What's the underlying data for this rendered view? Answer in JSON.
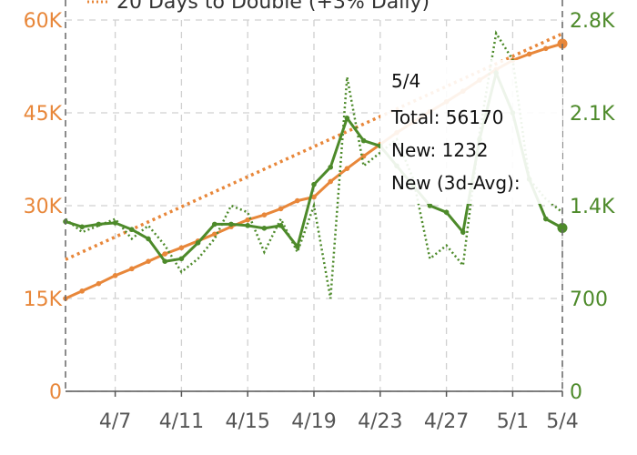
{
  "chart_data": {
    "type": "line",
    "legend": {
      "label": "20 Days to Double (+3% Daily)",
      "placement": "top"
    },
    "x_tick_labels": [
      "4/7",
      "4/11",
      "4/15",
      "4/19",
      "4/23",
      "4/27",
      "5/1",
      "5/4"
    ],
    "left_axis": {
      "range": [
        0,
        60000
      ],
      "ticks": [
        0,
        15000,
        30000,
        45000,
        60000
      ],
      "tick_labels": [
        "0",
        "15K",
        "30K",
        "45K",
        "60K"
      ],
      "color": "#e8873a"
    },
    "right_axis": {
      "range": [
        0,
        2800
      ],
      "ticks": [
        0,
        700,
        1400,
        2100,
        2800
      ],
      "tick_labels": [
        "0",
        "700",
        "1.4K",
        "2.1K",
        "2.8K"
      ],
      "color": "#4d8a2a"
    },
    "grid": true,
    "series": [
      {
        "axis": "left",
        "style": "solid-dots",
        "color": "#e8873a",
        "x": [
          "4/4",
          "4/5",
          "4/6",
          "4/7",
          "4/8",
          "4/9",
          "4/10",
          "4/11",
          "4/12",
          "4/13",
          "4/14",
          "4/15",
          "4/16",
          "4/17",
          "4/18",
          "4/19",
          "4/20",
          "4/21",
          "4/22",
          "4/23",
          "4/24",
          "4/25",
          "4/26",
          "4/27",
          "4/28",
          "4/29",
          "4/30",
          "5/1",
          "5/2",
          "5/3",
          "5/4"
        ],
        "values": [
          15000,
          16200,
          17400,
          18700,
          19800,
          21000,
          22200,
          23200,
          24300,
          25400,
          26600,
          27700,
          28500,
          29500,
          30800,
          31400,
          33900,
          36000,
          38000,
          39900,
          41800,
          43500,
          45200,
          46800,
          48500,
          50300,
          52000,
          53500,
          54500,
          55400,
          56170
        ]
      },
      {
        "axis": "left",
        "style": "dotted",
        "color": "#e8873a",
        "x": [
          "4/4",
          "5/4"
        ],
        "values": [
          21300,
          57800
        ]
      },
      {
        "axis": "right",
        "style": "dotted",
        "color": "#4d8a2a",
        "x": [
          "4/4",
          "4/5",
          "4/6",
          "4/7",
          "4/8",
          "4/9",
          "4/10",
          "4/11",
          "4/12",
          "4/13",
          "4/14",
          "4/15",
          "4/16",
          "4/17",
          "4/18",
          "4/19",
          "4/20",
          "4/21",
          "4/22",
          "4/23",
          "4/24",
          "4/25",
          "4/26",
          "4/27",
          "4/28",
          "4/29",
          "4/30",
          "5/1",
          "5/2",
          "5/3",
          "5/4"
        ],
        "values": [
          1300,
          1200,
          1250,
          1300,
          1150,
          1250,
          1100,
          900,
          1000,
          1150,
          1400,
          1350,
          1050,
          1300,
          1050,
          1400,
          700,
          2370,
          1700,
          1800,
          1900,
          1600,
          1000,
          1100,
          950,
          1950,
          2700,
          2500,
          1600,
          1450,
          1350
        ]
      },
      {
        "axis": "right",
        "style": "solid-dots",
        "color": "#4d8a2a",
        "x": [
          "4/4",
          "4/5",
          "4/6",
          "4/7",
          "4/8",
          "4/9",
          "4/10",
          "4/11",
          "4/12",
          "4/13",
          "4/14",
          "4/15",
          "4/16",
          "4/17",
          "4/18",
          "4/19",
          "4/20",
          "4/21",
          "4/22",
          "4/23",
          "4/24",
          "4/25",
          "4/26",
          "4/27",
          "4/28",
          "4/29",
          "4/30",
          "5/1",
          "5/2",
          "5/3",
          "5/4"
        ],
        "values": [
          1280,
          1240,
          1260,
          1270,
          1220,
          1150,
          980,
          1000,
          1120,
          1260,
          1260,
          1250,
          1230,
          1250,
          1090,
          1560,
          1690,
          2060,
          1890,
          1850,
          1700,
          1550,
          1400,
          1350,
          1200,
          1900,
          2400,
          2100,
          1600,
          1300,
          1232
        ]
      }
    ],
    "tooltip": {
      "title": "5/4",
      "lines": [
        "Total: 56170",
        "New: 1232",
        "New (3d-Avg):"
      ]
    }
  }
}
